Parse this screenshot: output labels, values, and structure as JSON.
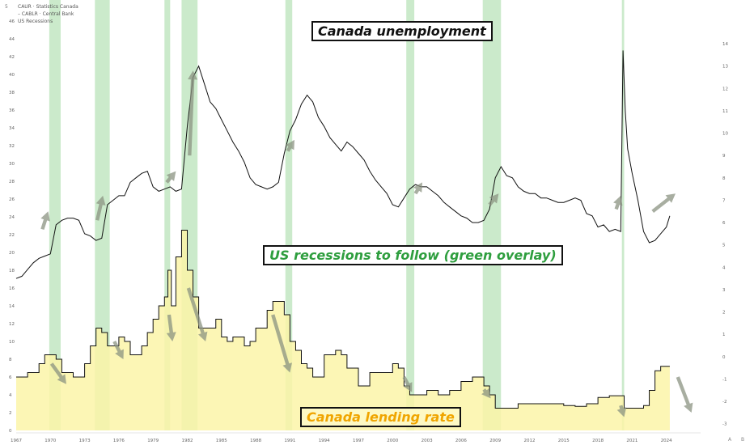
{
  "legend": {
    "unemployment": "CAUR · Statistics Canada",
    "lending": "CABLR · Central Bank",
    "recessions": "US Recessions",
    "dash": "–"
  },
  "corner": {
    "tl": "5",
    "br_a": "A",
    "br_b": "B"
  },
  "annotations": {
    "top": "Canada unemployment",
    "middle": "US recessions to follow (green overlay)",
    "bottom": "Canada lending rate"
  },
  "colors": {
    "recession": "#a8dca8",
    "line": "#111111",
    "fill": "#fbf5a8",
    "arrow": "#8b9382",
    "top_text": "#111111",
    "middle_text": "#2e9e3e",
    "bottom_text": "#f0a500"
  },
  "chart_data": {
    "type": "line",
    "x_ticks": [
      "1967",
      "1970",
      "1973",
      "1976",
      "1979",
      "1982",
      "1985",
      "1988",
      "1991",
      "1994",
      "1997",
      "2000",
      "2003",
      "2006",
      "2009",
      "2012",
      "2015",
      "2018",
      "2021",
      "2024"
    ],
    "x_range": [
      1967,
      2027
    ],
    "left_axis": {
      "ticks": [
        0,
        2,
        4,
        6,
        8,
        10,
        12,
        14,
        16,
        18,
        20,
        22,
        24,
        26,
        28,
        30,
        32,
        34,
        36,
        38,
        40,
        42,
        44,
        46
      ],
      "range": [
        0,
        46
      ]
    },
    "right_axis": {
      "ticks": [
        -3,
        -2,
        -1,
        0,
        1,
        2,
        3,
        4,
        5,
        6,
        7,
        8,
        9,
        10,
        11,
        12,
        13,
        14
      ],
      "range": [
        -3.3,
        14.8
      ]
    },
    "recessions": [
      [
        1969.9,
        1970.9
      ],
      [
        1973.9,
        1975.2
      ],
      [
        1980.0,
        1980.5
      ],
      [
        1981.5,
        1982.9
      ],
      [
        1990.6,
        1991.2
      ],
      [
        2001.2,
        2001.9
      ],
      [
        2007.9,
        2009.5
      ],
      [
        2020.1,
        2020.3
      ]
    ],
    "series": [
      {
        "name": "CAUR · Statistics Canada",
        "axis": "right",
        "x": [
          1967,
          1967.5,
          1968,
          1968.5,
          1969,
          1969.5,
          1970,
          1970.5,
          1971,
          1971.5,
          1972,
          1972.5,
          1973,
          1973.5,
          1974,
          1974.5,
          1975,
          1975.5,
          1976,
          1976.5,
          1977,
          1977.5,
          1978,
          1978.5,
          1979,
          1979.5,
          1980,
          1980.5,
          1981,
          1981.5,
          1982,
          1982.5,
          1983,
          1983.5,
          1984,
          1984.5,
          1985,
          1985.5,
          1986,
          1986.5,
          1987,
          1987.5,
          1988,
          1988.5,
          1989,
          1989.5,
          1990,
          1990.5,
          1991,
          1991.5,
          1992,
          1992.5,
          1993,
          1993.5,
          1994,
          1994.5,
          1995,
          1995.5,
          1996,
          1996.5,
          1997,
          1997.5,
          1998,
          1998.5,
          1999,
          1999.5,
          2000,
          2000.5,
          2001,
          2001.5,
          2002,
          2002.5,
          2003,
          2003.5,
          2004,
          2004.5,
          2005,
          2005.5,
          2006,
          2006.5,
          2007,
          2007.5,
          2008,
          2008.5,
          2009,
          2009.5,
          2010,
          2010.5,
          2011,
          2011.5,
          2012,
          2012.5,
          2013,
          2013.5,
          2014,
          2014.5,
          2015,
          2015.5,
          2016,
          2016.5,
          2017,
          2017.5,
          2018,
          2018.5,
          2019,
          2019.5,
          2020,
          2020.2,
          2020.4,
          2020.6,
          2021,
          2021.5,
          2022,
          2022.5,
          2023,
          2023.5,
          2024,
          2024.3
        ],
        "values": [
          3.5,
          3.6,
          3.9,
          4.2,
          4.4,
          4.5,
          4.6,
          5.9,
          6.1,
          6.2,
          6.2,
          6.1,
          5.5,
          5.4,
          5.2,
          5.3,
          6.8,
          7.0,
          7.2,
          7.2,
          7.8,
          8.0,
          8.2,
          8.3,
          7.6,
          7.4,
          7.5,
          7.6,
          7.4,
          7.5,
          10.3,
          12.5,
          13.0,
          12.2,
          11.4,
          11.1,
          10.6,
          10.1,
          9.6,
          9.2,
          8.7,
          8.0,
          7.7,
          7.6,
          7.5,
          7.6,
          7.8,
          9.1,
          10.1,
          10.6,
          11.3,
          11.7,
          11.4,
          10.7,
          10.3,
          9.8,
          9.5,
          9.2,
          9.6,
          9.4,
          9.1,
          8.8,
          8.3,
          7.9,
          7.6,
          7.3,
          6.8,
          6.7,
          7.1,
          7.5,
          7.7,
          7.6,
          7.6,
          7.4,
          7.2,
          6.9,
          6.7,
          6.5,
          6.3,
          6.2,
          6.0,
          6.0,
          6.1,
          6.6,
          8.0,
          8.5,
          8.1,
          8.0,
          7.6,
          7.4,
          7.3,
          7.3,
          7.1,
          7.1,
          7.0,
          6.9,
          6.9,
          7.0,
          7.1,
          7.0,
          6.4,
          6.3,
          5.8,
          5.9,
          5.6,
          5.7,
          5.6,
          13.7,
          11.0,
          9.3,
          8.2,
          7.0,
          5.6,
          5.1,
          5.2,
          5.5,
          5.8,
          6.3
        ]
      },
      {
        "name": "CABLR · Central Bank",
        "axis": "left",
        "x": [
          1967,
          1968,
          1969,
          1969.5,
          1970,
          1970.5,
          1971,
          1972,
          1973,
          1973.5,
          1974,
          1974.5,
          1975,
          1975.5,
          1976,
          1976.5,
          1977,
          1978,
          1978.5,
          1979,
          1979.5,
          1980,
          1980.3,
          1980.6,
          1981,
          1981.5,
          1982,
          1982.5,
          1983,
          1984,
          1984.5,
          1985,
          1985.5,
          1986,
          1987,
          1987.5,
          1988,
          1989,
          1989.5,
          1990,
          1990.5,
          1991,
          1991.5,
          1992,
          1992.5,
          1993,
          1994,
          1995,
          1995.5,
          1996,
          1997,
          1998,
          1998.5,
          1999,
          2000,
          2000.5,
          2001,
          2001.5,
          2002,
          2003,
          2004,
          2005,
          2006,
          2007,
          2007.5,
          2008,
          2008.5,
          2009,
          2010,
          2011,
          2012,
          2015,
          2016,
          2017,
          2018,
          2019,
          2020,
          2020.3,
          2021,
          2022,
          2022.5,
          2023,
          2023.5,
          2024,
          2024.3
        ],
        "values": [
          6.0,
          6.5,
          7.5,
          8.5,
          8.5,
          8.0,
          6.5,
          6.0,
          7.5,
          9.5,
          11.5,
          11.0,
          9.5,
          9.5,
          10.5,
          10.0,
          8.5,
          9.5,
          11.0,
          12.5,
          14.0,
          15.0,
          18.0,
          14.0,
          19.5,
          22.5,
          18.0,
          15.0,
          11.5,
          11.5,
          12.5,
          10.5,
          10.0,
          10.5,
          9.5,
          10.0,
          11.5,
          13.5,
          14.5,
          14.5,
          13.0,
          10.0,
          9.0,
          7.5,
          7.0,
          6.0,
          8.5,
          9.0,
          8.5,
          7.0,
          5.0,
          6.5,
          6.5,
          6.5,
          7.5,
          7.0,
          5.0,
          4.0,
          4.0,
          4.5,
          4.0,
          4.5,
          5.5,
          6.0,
          6.0,
          5.0,
          4.0,
          2.5,
          2.5,
          3.0,
          3.0,
          2.8,
          2.7,
          3.0,
          3.7,
          3.9,
          3.9,
          2.5,
          2.5,
          2.8,
          4.5,
          6.7,
          7.2,
          7.2,
          7.2
        ]
      }
    ]
  }
}
